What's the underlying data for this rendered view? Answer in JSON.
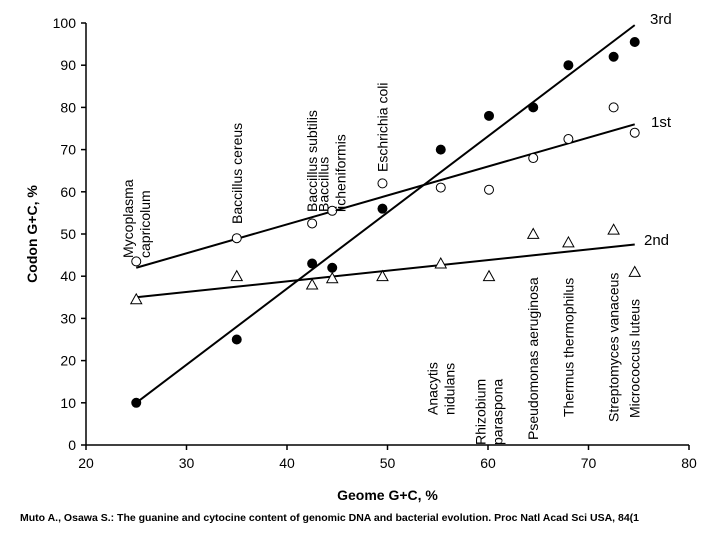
{
  "chart_data": {
    "type": "scatter",
    "title": "",
    "xlabel": "Geome G+C, %",
    "ylabel": "Codon G+C, %",
    "xlim": [
      20,
      80
    ],
    "ylim": [
      0,
      100
    ],
    "x_ticks": [
      "20",
      "30",
      "40",
      "50",
      "60",
      "70",
      "80"
    ],
    "y_ticks": [
      "0",
      "10",
      "20",
      "30",
      "40",
      "50",
      "60",
      "70",
      "80",
      "90",
      "100"
    ],
    "series": [
      {
        "name": "3rd",
        "marker": "filled-circle",
        "points": [
          [
            25,
            10
          ],
          [
            35,
            25
          ],
          [
            42.5,
            43
          ],
          [
            44.5,
            42
          ],
          [
            49.5,
            56
          ],
          [
            55.3,
            70
          ],
          [
            60.1,
            78
          ],
          [
            64.5,
            80
          ],
          [
            68,
            90
          ],
          [
            72.5,
            92
          ],
          [
            74.6,
            95.5
          ]
        ],
        "trend": [
          [
            25,
            10
          ],
          [
            74.6,
            99.5
          ]
        ]
      },
      {
        "name": "1st",
        "marker": "open-circle",
        "points": [
          [
            25,
            43.5
          ],
          [
            35,
            49
          ],
          [
            42.5,
            52.5
          ],
          [
            44.5,
            55.5
          ],
          [
            49.5,
            62
          ],
          [
            55.3,
            61
          ],
          [
            60.1,
            60.5
          ],
          [
            64.5,
            68
          ],
          [
            68,
            72.5
          ],
          [
            72.5,
            80
          ],
          [
            74.6,
            74
          ]
        ],
        "trend": [
          [
            25,
            42
          ],
          [
            74.6,
            76
          ]
        ]
      },
      {
        "name": "2nd",
        "marker": "open-triangle",
        "points": [
          [
            25,
            34.5
          ],
          [
            35,
            40
          ],
          [
            42.5,
            38
          ],
          [
            44.5,
            39.5
          ],
          [
            49.5,
            40
          ],
          [
            55.3,
            43
          ],
          [
            60.1,
            40
          ],
          [
            64.5,
            50
          ],
          [
            68,
            48
          ],
          [
            72.5,
            51
          ],
          [
            74.6,
            41
          ]
        ],
        "trend": [
          [
            25,
            35
          ],
          [
            74.6,
            47.5
          ]
        ]
      }
    ],
    "annotations_upper": [
      {
        "lines": [
          "Mycoplasma",
          "capricolum"
        ],
        "x": 25
      },
      {
        "lines": [
          "Baccillus cereus"
        ],
        "x": 35
      },
      {
        "lines": [
          "Baccillus subtilis"
        ],
        "x": 42.5
      },
      {
        "lines": [
          "Baccillus",
          "licheniformis"
        ],
        "x": 44.5
      },
      {
        "lines": [
          "Eschrichia coli"
        ],
        "x": 49.5
      }
    ],
    "annotations_lower": [
      {
        "lines": [
          "Anacytis",
          "nidulans"
        ],
        "x": 55.3
      },
      {
        "lines": [
          "Rhizobium",
          "paraspona"
        ],
        "x": 60.1
      },
      {
        "lines": [
          "Pseudomonas aeruginosa"
        ],
        "x": 64.5
      },
      {
        "lines": [
          "Thermus thermophilus"
        ],
        "x": 68
      },
      {
        "lines": [
          "Streptomyces vanaceus"
        ],
        "x": 72.5
      },
      {
        "lines": [
          "Micrococcus luteus"
        ],
        "x": 74.6
      }
    ]
  },
  "citation": "Muto A., Osawa S.: The guanine and cytocine content of genomic DNA and bacterial evolution. Proc Natl Acad Sci USA, 84(1"
}
